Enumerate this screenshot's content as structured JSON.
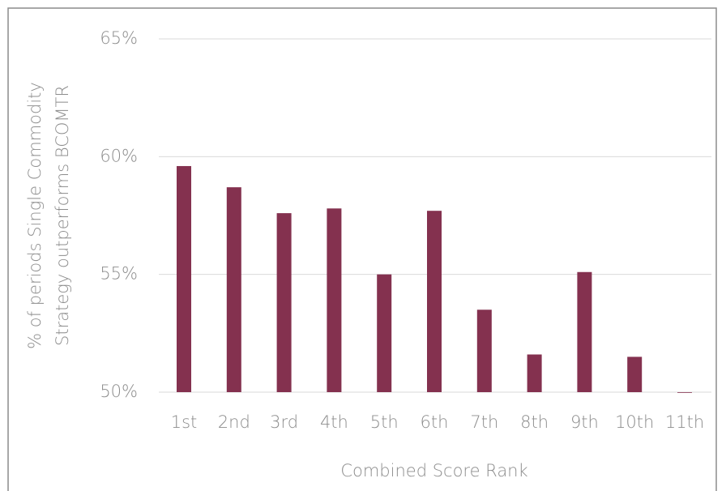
{
  "chart_data": {
    "type": "bar",
    "ylabel": [
      "% of periods  Single Commodity",
      "Strategy outperforms BCOMTR"
    ],
    "xlabel": "Combined Score Rank",
    "categories": [
      "1st",
      "2nd",
      "3rd",
      "4th",
      "5th",
      "6th",
      "7th",
      "8th",
      "9th",
      "10th",
      "11th"
    ],
    "values": [
      59.6,
      58.7,
      57.6,
      57.8,
      55.0,
      57.7,
      53.5,
      51.6,
      55.1,
      51.5,
      50.0
    ],
    "color": "#84314f",
    "ylim": [
      50,
      65
    ],
    "yticks": [
      {
        "value": 50,
        "label": "50%"
      },
      {
        "value": 55,
        "label": "55%"
      },
      {
        "value": 60,
        "label": "60%"
      },
      {
        "value": 65,
        "label": "65%"
      }
    ],
    "grid": true
  }
}
